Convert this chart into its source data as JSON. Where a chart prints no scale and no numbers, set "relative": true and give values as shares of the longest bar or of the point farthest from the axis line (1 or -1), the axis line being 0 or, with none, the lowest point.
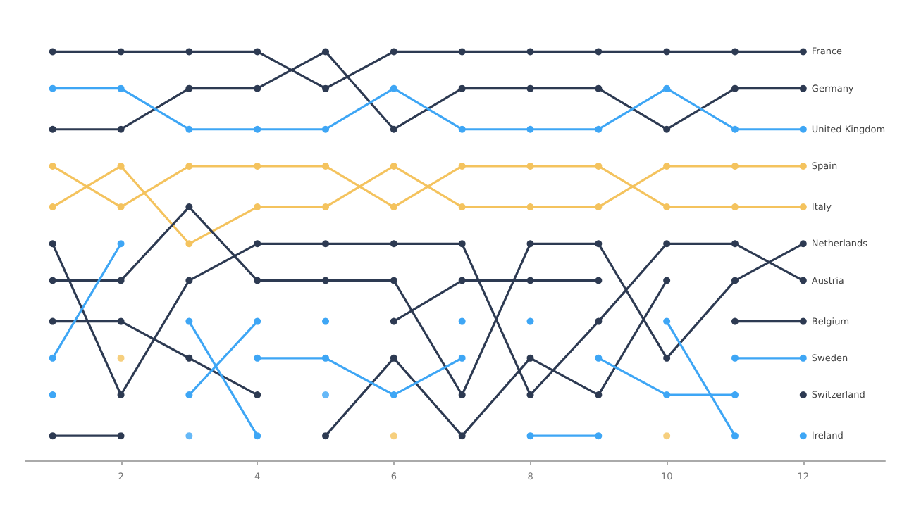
{
  "chart_data": {
    "type": "line",
    "x": [
      1,
      2,
      3,
      4,
      5,
      6,
      7,
      8,
      9,
      10,
      11,
      12
    ],
    "xlim": [
      0.6,
      13.2
    ],
    "xticks": [
      2,
      4,
      6,
      8,
      10,
      12
    ],
    "relative": true,
    "grid": false,
    "marker": "circle",
    "line_style": "solid",
    "series": [
      {
        "name": "France",
        "color": "#2d3a52",
        "values": [
          1,
          1,
          1,
          1,
          0.91,
          1,
          1,
          1,
          1,
          1,
          1,
          1
        ]
      },
      {
        "name": "Germany",
        "color": "#2d3a52",
        "values": [
          0.81,
          0.81,
          0.91,
          0.91,
          1,
          0.81,
          0.91,
          0.91,
          0.91,
          0.81,
          0.91,
          0.91
        ]
      },
      {
        "name": "United Kingdom",
        "color": "#3ea6f5",
        "values": [
          0.91,
          0.91,
          0.81,
          0.81,
          0.81,
          0.91,
          0.81,
          0.81,
          0.81,
          0.91,
          0.81,
          0.81
        ]
      },
      {
        "name": "Spain",
        "color": "#f4c35e",
        "values": [
          0.62,
          0.72,
          0.53,
          0.62,
          0.62,
          0.72,
          0.62,
          0.62,
          0.62,
          0.72,
          0.72,
          0.72
        ]
      },
      {
        "name": "Italy",
        "color": "#f4c35e",
        "values": [
          0.72,
          0.62,
          0.72,
          0.72,
          0.72,
          0.62,
          0.72,
          0.72,
          0.72,
          0.62,
          0.62,
          0.62
        ]
      },
      {
        "name": "Netherlands",
        "color": "#2d3a52",
        "values": [
          0.44,
          0.44,
          0.62,
          0.44,
          0.44,
          0.44,
          0.16,
          0.53,
          0.53,
          0.25,
          0.44,
          0.53
        ]
      },
      {
        "name": "Austria",
        "color": "#2d3a52",
        "values": [
          0.53,
          0.16,
          0.44,
          0.53,
          0.53,
          0.53,
          0.53,
          0.16,
          0.34,
          0.53,
          0.53,
          0.44
        ]
      },
      {
        "name": "Belgium",
        "color": "#2d3a52",
        "values": [
          0.34,
          0.34,
          0.25,
          0.16,
          null,
          0.34,
          0.44,
          0.44,
          0.44,
          null,
          0.34,
          0.34
        ]
      },
      {
        "name": "Switzerland",
        "color": "#2d3a52",
        "values": [
          0.06,
          0.06,
          null,
          null,
          0.06,
          0.25,
          0.06,
          0.25,
          0.16,
          0.44,
          null,
          0.16
        ]
      },
      {
        "color": "#3ea6f5",
        "values": [
          0.25,
          0.53,
          null,
          null,
          0.34,
          null,
          null,
          0.34,
          null,
          0.34,
          0.06,
          null
        ]
      },
      {
        "color": "#3ea6f5",
        "values": [
          0.16,
          null,
          0.16,
          0.34,
          null,
          null,
          0.34,
          null,
          0.25,
          0.16,
          0.16,
          null
        ]
      },
      {
        "name": "Sweden",
        "color": "#3ea6f5",
        "values": [
          null,
          null,
          0.34,
          0.06,
          null,
          null,
          null,
          0.06,
          0.06,
          null,
          0.25,
          0.25
        ]
      },
      {
        "name": "Ireland",
        "color": "#3ea6f5",
        "values": [
          null,
          null,
          null,
          0.25,
          0.25,
          0.16,
          0.25,
          null,
          null,
          null,
          null,
          0.06
        ]
      },
      {
        "type": "scatter",
        "color": "#3ea6f5",
        "values": [
          null,
          null,
          0.06,
          null,
          0.16,
          null,
          null,
          null,
          null,
          null,
          null,
          null
        ]
      },
      {
        "type": "scatter",
        "color": "#f4c35e",
        "values": [
          null,
          0.25,
          null,
          null,
          null,
          0.06,
          null,
          null,
          null,
          0.06,
          null,
          null
        ]
      }
    ]
  }
}
